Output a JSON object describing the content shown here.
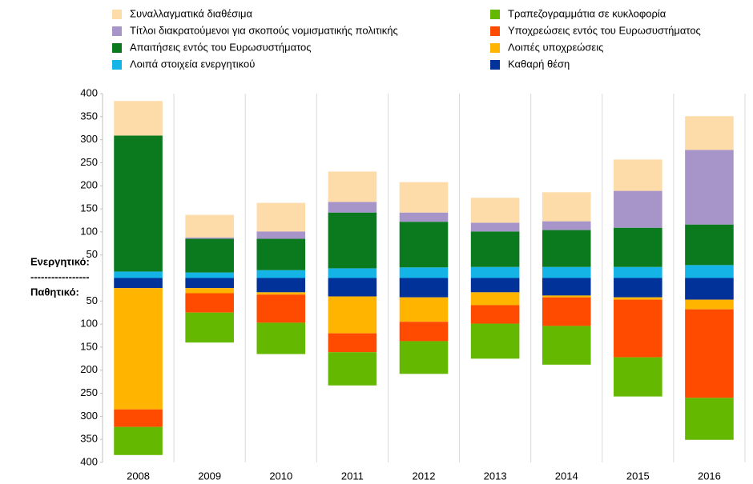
{
  "chart_data": {
    "type": "bar",
    "stacked": true,
    "annotations": {
      "assets": "Ενεργητικό:",
      "separator": "-----------------",
      "liabilities": "Παθητικό:"
    },
    "categories": [
      "2008",
      "2009",
      "2010",
      "2011",
      "2012",
      "2013",
      "2014",
      "2015",
      "2016"
    ],
    "series": [
      {
        "name": "Λοιπά στοιχεία ενεργητικού",
        "color": "#14b4e6",
        "values": [
          14,
          12,
          17,
          21,
          23,
          24,
          24,
          24,
          28
        ]
      },
      {
        "name": "Απαιτήσεις εντός του Ευρωσυστήματος",
        "color": "#0b7a1e",
        "values": [
          295,
          73,
          68,
          121,
          99,
          77,
          80,
          85,
          88
        ]
      },
      {
        "name": "Τίτλοι διακρατούμενοι για σκοπούς νομισματικής πολιτικής",
        "color": "#a794c9",
        "values": [
          0,
          3,
          16,
          23,
          20,
          19,
          19,
          80,
          162
        ]
      },
      {
        "name": "Συναλλαγματικά διαθέσιμα",
        "color": "#fddcaa",
        "values": [
          75,
          49,
          62,
          66,
          66,
          54,
          63,
          68,
          73
        ]
      },
      {
        "name": "Καθαρή θέση",
        "color": "#003299",
        "values": [
          -22,
          -22,
          -31,
          -40,
          -42,
          -31,
          -38,
          -42,
          -47
        ]
      },
      {
        "name": "Λοιπές υποχρεώσεις",
        "color": "#ffb400",
        "values": [
          -263,
          -11,
          -5,
          -80,
          -53,
          -28,
          -4,
          -5,
          -21
        ]
      },
      {
        "name": "Υποχρεώσεις εντός του Ευρωσυστήματος",
        "color": "#ff4b00",
        "values": [
          -38,
          -42,
          -61,
          -41,
          -42,
          -40,
          -62,
          -125,
          -192
        ]
      },
      {
        "name": "Τραπεζογραμμάτια σε κυκλοφορία",
        "color": "#65b800",
        "values": [
          -61,
          -65,
          -68,
          -72,
          -71,
          -76,
          -84,
          -85,
          -91
        ]
      }
    ],
    "ylim": [
      -400,
      400
    ],
    "yticks": [
      400,
      350,
      300,
      250,
      200,
      150,
      100,
      50,
      {
        "value": -50,
        "label": "50"
      },
      {
        "value": -100,
        "label": "100"
      },
      {
        "value": -150,
        "label": "150"
      },
      {
        "value": -200,
        "label": "200"
      },
      {
        "value": -250,
        "label": "250"
      },
      {
        "value": -300,
        "label": "300"
      },
      {
        "value": -350,
        "label": "350"
      },
      {
        "value": -400,
        "label": "400"
      }
    ]
  }
}
